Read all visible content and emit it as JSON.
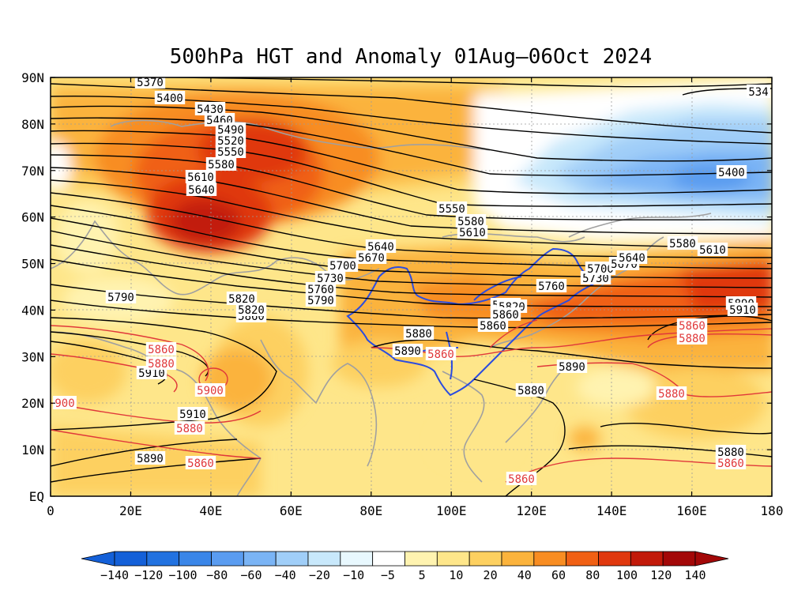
{
  "title": "500hPa HGT and Anomaly 01Aug–06Oct 2024",
  "lat_labels": [
    "90N",
    "80N",
    "70N",
    "60N",
    "50N",
    "40N",
    "30N",
    "20N",
    "10N",
    "EQ"
  ],
  "lon_labels": [
    "0",
    "20E",
    "40E",
    "60E",
    "80E",
    "100E",
    "120E",
    "140E",
    "160E",
    "180"
  ],
  "colorbar": {
    "ticks": [
      "−140",
      "−120",
      "−100",
      "−80",
      "−60",
      "−40",
      "−20",
      "−10",
      "−5",
      "5",
      "10",
      "20",
      "40",
      "60",
      "80",
      "100",
      "120",
      "140"
    ],
    "colors": [
      "#1460d8",
      "#2272e0",
      "#3a86e8",
      "#5a9cf0",
      "#7ab4f5",
      "#a0cef8",
      "#c8e8fb",
      "#e8f8fe",
      "#ffffff",
      "#fff3b0",
      "#fee68a",
      "#fdd060",
      "#fbb33c",
      "#f88d22",
      "#f06014",
      "#e0380e",
      "#c21a0a",
      "#a30808"
    ]
  },
  "contours": {
    "black_labels": [
      "5370",
      "5400",
      "5430",
      "5460",
      "5490",
      "5520",
      "5550",
      "5580",
      "5610",
      "5640",
      "534",
      "5400",
      "5550",
      "5580",
      "5610",
      "5640",
      "5670",
      "5700",
      "5730",
      "5760",
      "5790",
      "5820",
      "5860",
      "5790",
      "5880",
      "5890",
      "5910",
      "5820",
      "5890",
      "5880",
      "5760",
      "5730",
      "5700",
      "5670",
      "5640",
      "5580",
      "5610",
      "5890",
      "5910",
      "5910",
      "5880",
      "5890",
      "5880",
      "5860",
      "5820",
      "5860"
    ],
    "red_labels": [
      "5860",
      "5880",
      "5900",
      "900",
      "5880",
      "5860",
      "5860",
      "5860",
      "5880",
      "5880",
      "5860",
      "5860"
    ]
  },
  "colors": {
    "black_contour": "#000000",
    "red_contour": "#e0383a",
    "coastline": "#a0a0a0",
    "border": "#2b4ce0"
  }
}
